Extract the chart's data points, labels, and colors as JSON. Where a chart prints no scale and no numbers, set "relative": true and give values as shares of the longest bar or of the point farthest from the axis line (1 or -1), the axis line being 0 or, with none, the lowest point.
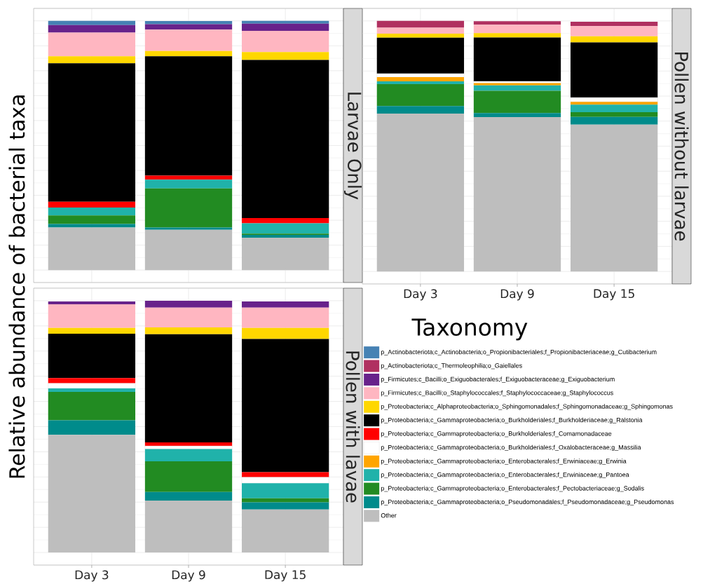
{
  "chart_data": [
    {
      "type": "bar",
      "stacked": true,
      "relative": true,
      "title": "Larvae Only",
      "ylabel": "Relative abundance of bacterial taxa",
      "categories": [
        null,
        null,
        null
      ],
      "tick_labels": false,
      "grid": true,
      "series": [
        {
          "color": "#bebebe",
          "values": [
            0.171,
            0.162,
            0.13
          ]
        },
        {
          "color": "#008b8b",
          "values": [
            0.014,
            0.009,
            0.011
          ]
        },
        {
          "color": "#228b22",
          "values": [
            0.034,
            0.157,
            0.005
          ]
        },
        {
          "color": "#20b2aa",
          "values": [
            0.032,
            0.035,
            0.042
          ]
        },
        {
          "color": "#ff0000",
          "values": [
            0.023,
            0.016,
            0.021
          ]
        },
        {
          "color": "#000000",
          "values": [
            0.556,
            0.479,
            0.634
          ]
        },
        {
          "color": "#ffd700",
          "values": [
            0.028,
            0.021,
            0.032
          ]
        },
        {
          "color": "#ffb6c1",
          "values": [
            0.095,
            0.086,
            0.085
          ]
        },
        {
          "color": "#68228b",
          "values": [
            0.03,
            0.022,
            0.029
          ]
        },
        {
          "color": "#4682b4",
          "values": [
            0.017,
            0.012,
            0.011
          ]
        }
      ]
    },
    {
      "type": "bar",
      "stacked": true,
      "relative": true,
      "title": "Pollen without larvae",
      "categories": [
        "Day 3",
        "Day 9",
        "Day 15"
      ],
      "tick_labels": "x",
      "grid": true,
      "series": [
        {
          "color": "#bebebe",
          "values": [
            0.63,
            0.616,
            0.586
          ]
        },
        {
          "color": "#008b8b",
          "values": [
            0.03,
            0.016,
            0.031
          ]
        },
        {
          "color": "#228b22",
          "values": [
            0.088,
            0.089,
            0.019
          ]
        },
        {
          "color": "#20b2aa",
          "values": [
            0.011,
            0.022,
            0.03
          ]
        },
        {
          "color": "#ffa500",
          "values": [
            0.017,
            0.009,
            0.011
          ]
        },
        {
          "color": "#ffffff",
          "values": [
            0.014,
            0.007,
            0.017
          ]
        },
        {
          "color": "#000000",
          "values": [
            0.143,
            0.175,
            0.22
          ]
        },
        {
          "color": "#ffd700",
          "values": [
            0.016,
            0.017,
            0.025
          ]
        },
        {
          "color": "#ffb6c1",
          "values": [
            0.024,
            0.034,
            0.04
          ]
        },
        {
          "color": "#b03060",
          "values": [
            0.027,
            0.014,
            0.018
          ]
        }
      ]
    },
    {
      "type": "bar",
      "stacked": true,
      "relative": true,
      "title": "Pollen with lavae",
      "categories": [
        "Day 3",
        "Day 9",
        "Day 15"
      ],
      "tick_labels": "x",
      "grid": true,
      "legend": "right",
      "legend_title": "Taxonomy",
      "series": [
        {
          "name": "Other",
          "color": "#bebebe",
          "values": [
            0.467,
            0.206,
            0.171
          ]
        },
        {
          "name": "p_Proteobacteria;c_Gammaproteobacteria;o_Pseudomonadales;f_Pseudomonadaceae;g_Pseudomonas",
          "color": "#008b8b",
          "values": [
            0.058,
            0.034,
            0.028
          ]
        },
        {
          "name": "p_Proteobacteria;c_Gammaproteobacteria;o_Enterobacterales;f_Pectobacteriaceae;g_Sodalis",
          "color": "#228b22",
          "values": [
            0.113,
            0.122,
            0.016
          ]
        },
        {
          "name": "p_Proteobacteria;c_Gammaproteobacteria;o_Enterobacterales;f_Erwiniaceae;g_Pantoea",
          "color": "#20b2aa",
          "values": [
            0.014,
            0.049,
            0.06
          ]
        },
        {
          "name": "p_Proteobacteria;c_Gammaproteobacteria;o_Enterobacterales;f_Erwiniaceae;g_Erwinia",
          "color": "#ffa500",
          "values": [
            0,
            0,
            0
          ]
        },
        {
          "name": "p_Proteobacteria;c_Gammaproteobacteria;o_Burkholderiales;f_Oxalobacteraceae;g_Massilia",
          "color": "#ffffff",
          "values": [
            0.02,
            0.012,
            0.024
          ]
        },
        {
          "name": "p_Proteobacteria;c_Gammaproteobacteria;o_Burkholderiales;f_Comamonadaceae",
          "color": "#ff0000",
          "values": [
            0.021,
            0.014,
            0.02
          ]
        },
        {
          "name": "p_Proteobacteria;c_Gammaproteobacteria;o_Burkholderiales;f_Burkholderiaceae;g_Ralstonia",
          "color": "#000000",
          "values": [
            0.176,
            0.43,
            0.529
          ]
        },
        {
          "name": "p_Proteobacteria;c_Alphaproteobacteria;o_Sphingomonadales;f_Sphingomonadaceae;g_Sphingomonas",
          "color": "#ffd700",
          "values": [
            0.023,
            0.027,
            0.044
          ]
        },
        {
          "name": "p_Firmicutes;c_Bacilli;o_Staphylococcales;f_Staphylococcaceae;g_Staphylococcus",
          "color": "#ffb6c1",
          "values": [
            0.094,
            0.079,
            0.081
          ]
        },
        {
          "name": "p_Firmicutes;c_Bacilli;o_Exiguobacterales;f_Exiguobacteraceae;g_Exiguobacterium",
          "color": "#68228b",
          "values": [
            0.011,
            0.027,
            0.024
          ]
        },
        {
          "name": "p_Actinobacteriota;c_Thermoleophilia;o_Gaiellales",
          "color": "#b03060",
          "values": [
            0,
            0,
            0
          ]
        },
        {
          "name": "p_Actinobacteriota;c_Actinobacteria;o_Propionibacteriales;f_Propionibacteriaceae;g_Cutibacterium",
          "color": "#4682b4",
          "values": [
            0,
            0,
            0
          ]
        }
      ]
    }
  ]
}
